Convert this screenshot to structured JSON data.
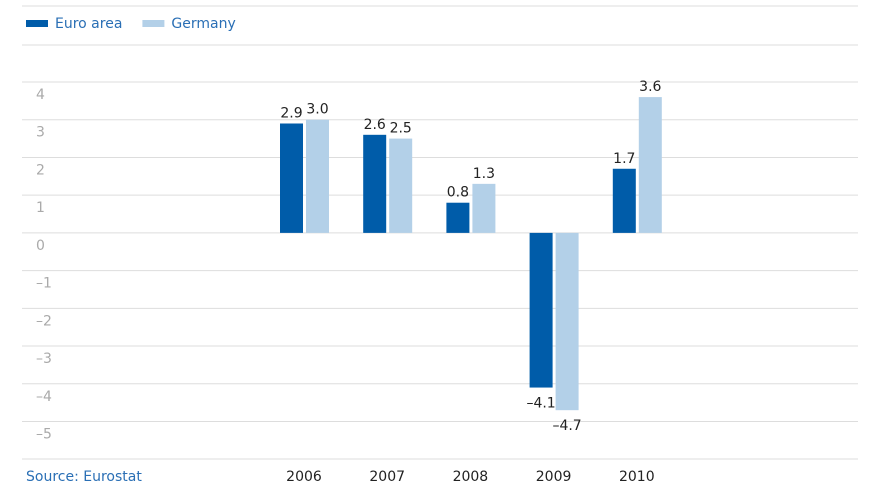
{
  "chart_data": {
    "type": "bar",
    "categories": [
      "2006",
      "2007",
      "2008",
      "2009",
      "2010"
    ],
    "series": [
      {
        "name": "Euro area",
        "color": "#005ca9",
        "values": [
          2.9,
          2.6,
          0.8,
          -4.1,
          1.7
        ],
        "value_labels": [
          "2.9",
          "2.6",
          "0.8",
          "–4.1",
          "1.7"
        ]
      },
      {
        "name": "Germany",
        "color": "#b3d0e8",
        "values": [
          3.0,
          2.5,
          1.3,
          -4.7,
          3.6
        ],
        "value_labels": [
          "3.0",
          "2.5",
          "1.3",
          "–4.7",
          "3.6"
        ]
      }
    ],
    "ylim": [
      -5,
      4
    ],
    "yticks": [
      4,
      3,
      2,
      1,
      0,
      {
        "value": -1,
        "label": "–1"
      },
      {
        "value": -2,
        "label": "–2"
      },
      {
        "value": -3,
        "label": "–3"
      },
      {
        "value": -4,
        "label": "–4"
      },
      {
        "value": -5,
        "label": "–5"
      }
    ],
    "grid": true,
    "source": "Source: Eurostat"
  }
}
